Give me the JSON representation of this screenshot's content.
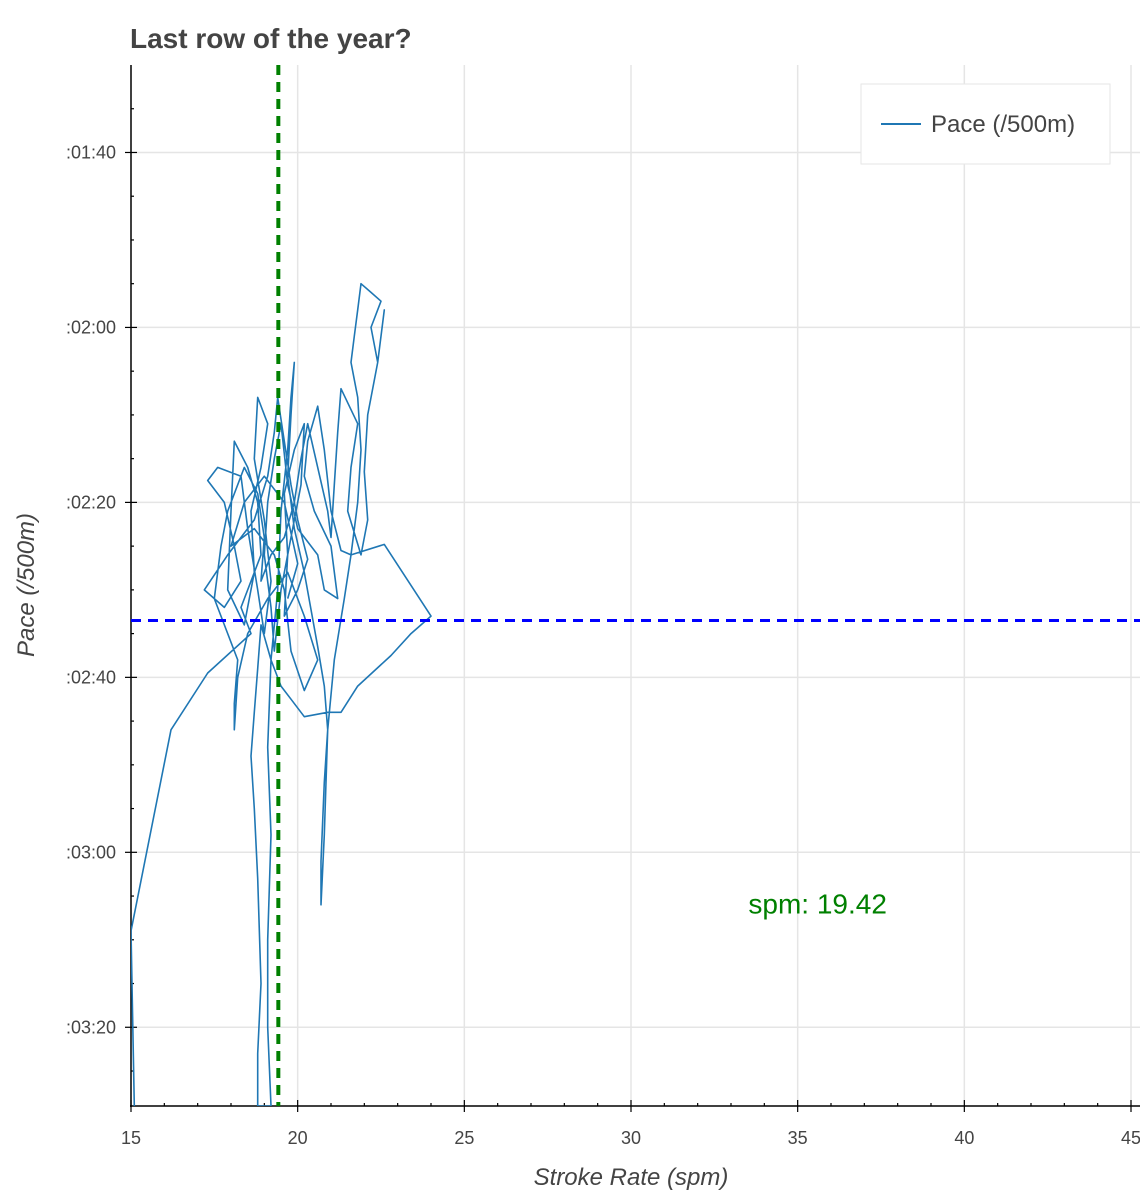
{
  "chart_data": {
    "type": "line",
    "title": "Last row of the year?",
    "xlabel": "Stroke Rate (spm)",
    "ylabel": "Pace (/500m)",
    "xlim": [
      15,
      45
    ],
    "ylim_seconds": [
      90,
      209
    ],
    "y_inverted": true,
    "grid": true,
    "legend_position": "top-right",
    "x_ticks": [
      15,
      20,
      25,
      30,
      35,
      40,
      45
    ],
    "x_tick_labels": [
      "15",
      "20",
      "25",
      "30",
      "35",
      "40",
      "45"
    ],
    "y_ticks_seconds": [
      100,
      120,
      140,
      160,
      180,
      200
    ],
    "y_tick_labels": [
      ":01:40",
      ":02:00",
      ":02:20",
      ":02:40",
      ":03:00",
      ":03:20"
    ],
    "series": [
      {
        "name": "Pace (/500m)",
        "color": "#1f77b4",
        "points": [
          [
            15.1,
            209.0
          ],
          [
            15.0,
            189.0
          ],
          [
            16.2,
            166.0
          ],
          [
            17.3,
            159.5
          ],
          [
            18.6,
            155.0
          ],
          [
            18.3,
            152.0
          ],
          [
            18.9,
            146.0
          ],
          [
            18.8,
            140.0
          ],
          [
            18.5,
            136.0
          ],
          [
            18.1,
            133.0
          ],
          [
            18.0,
            141.0
          ],
          [
            17.9,
            150.0
          ],
          [
            18.4,
            154.0
          ],
          [
            18.7,
            148.0
          ],
          [
            18.6,
            141.0
          ],
          [
            18.9,
            136.0
          ],
          [
            19.1,
            131.0
          ],
          [
            18.8,
            128.0
          ],
          [
            18.7,
            135.0
          ],
          [
            19.0,
            142.0
          ],
          [
            19.2,
            149.0
          ],
          [
            19.0,
            155.0
          ],
          [
            18.8,
            150.0
          ],
          [
            18.5,
            143.0
          ],
          [
            18.3,
            137.0
          ],
          [
            17.6,
            136.0
          ],
          [
            17.3,
            137.5
          ],
          [
            17.8,
            140.0
          ],
          [
            18.1,
            145.0
          ],
          [
            18.3,
            149.0
          ],
          [
            17.8,
            152.0
          ],
          [
            17.2,
            150.0
          ],
          [
            17.9,
            146.0
          ],
          [
            18.7,
            142.0
          ],
          [
            19.1,
            137.0
          ],
          [
            19.3,
            132.0
          ],
          [
            19.4,
            128.0
          ],
          [
            19.6,
            133.0
          ],
          [
            19.8,
            138.0
          ],
          [
            20.0,
            142.0
          ],
          [
            20.3,
            146.5
          ],
          [
            20.0,
            150.0
          ],
          [
            19.6,
            153.0
          ],
          [
            19.7,
            146.0
          ],
          [
            19.6,
            139.0
          ],
          [
            19.9,
            134.0
          ],
          [
            20.2,
            131.0
          ],
          [
            20.1,
            138.0
          ],
          [
            19.8,
            144.0
          ],
          [
            19.5,
            150.0
          ],
          [
            19.3,
            157.0
          ],
          [
            19.2,
            152.0
          ],
          [
            19.0,
            146.0
          ],
          [
            19.1,
            140.0
          ],
          [
            19.3,
            135.0
          ],
          [
            19.5,
            131.0
          ],
          [
            19.7,
            138.0
          ],
          [
            20.0,
            143.0
          ],
          [
            20.6,
            146.0
          ],
          [
            20.8,
            150.0
          ],
          [
            21.2,
            151.0
          ],
          [
            21.0,
            145.0
          ],
          [
            20.5,
            141.0
          ],
          [
            20.2,
            137.0
          ],
          [
            20.3,
            133.0
          ],
          [
            20.6,
            129.0
          ],
          [
            20.8,
            134.0
          ],
          [
            21.0,
            141.0
          ],
          [
            21.3,
            145.5
          ],
          [
            21.6,
            146.0
          ],
          [
            22.6,
            144.8
          ],
          [
            24.0,
            153.0
          ],
          [
            23.4,
            155.0
          ],
          [
            22.8,
            157.5
          ],
          [
            21.8,
            161.0
          ],
          [
            21.3,
            164.0
          ],
          [
            20.9,
            164.0
          ],
          [
            20.2,
            164.5
          ],
          [
            19.8,
            162.5
          ],
          [
            19.5,
            161.0
          ],
          [
            19.2,
            158.0
          ],
          [
            18.9,
            154.0
          ],
          [
            18.8,
            159.0
          ],
          [
            18.7,
            164.0
          ],
          [
            18.6,
            169.0
          ],
          [
            18.7,
            175.0
          ],
          [
            18.8,
            183.0
          ],
          [
            18.9,
            195.0
          ],
          [
            18.8,
            203.0
          ],
          [
            18.8,
            209.0
          ],
          [
            19.2,
            209.0
          ],
          [
            19.1,
            200.0
          ],
          [
            19.1,
            190.0
          ],
          [
            19.2,
            178.0
          ],
          [
            19.1,
            168.0
          ],
          [
            19.2,
            158.0
          ],
          [
            19.4,
            150.0
          ],
          [
            19.5,
            141.0
          ],
          [
            19.7,
            134.0
          ],
          [
            19.8,
            128.0
          ],
          [
            19.9,
            124.0
          ],
          [
            19.8,
            130.0
          ],
          [
            19.7,
            137.0
          ],
          [
            19.9,
            143.0
          ],
          [
            20.2,
            148.0
          ],
          [
            20.6,
            156.5
          ],
          [
            20.8,
            161.0
          ],
          [
            20.9,
            166.0
          ],
          [
            20.8,
            172.0
          ],
          [
            20.7,
            181.0
          ],
          [
            20.7,
            186.0
          ],
          [
            20.8,
            178.0
          ],
          [
            20.9,
            166.0
          ],
          [
            21.1,
            158.0
          ],
          [
            21.4,
            151.0
          ],
          [
            21.6,
            146.0
          ],
          [
            21.8,
            140.0
          ],
          [
            21.9,
            134.0
          ],
          [
            21.8,
            128.0
          ],
          [
            21.6,
            124.0
          ],
          [
            21.7,
            121.0
          ],
          [
            21.8,
            118.0
          ],
          [
            21.9,
            115.0
          ],
          [
            22.2,
            116.0
          ],
          [
            22.5,
            117.0
          ],
          [
            22.2,
            120.0
          ],
          [
            22.4,
            124.0
          ],
          [
            22.6,
            118.0
          ],
          [
            22.4,
            124.0
          ],
          [
            22.1,
            130.0
          ],
          [
            22.0,
            136.5
          ],
          [
            22.1,
            142.0
          ],
          [
            21.9,
            146.0
          ],
          [
            21.5,
            141.0
          ],
          [
            21.6,
            136.0
          ],
          [
            21.8,
            131.0
          ],
          [
            21.3,
            127.0
          ],
          [
            21.2,
            132.0
          ],
          [
            21.1,
            138.0
          ],
          [
            21.0,
            144.0
          ],
          [
            20.9,
            141.0
          ],
          [
            20.6,
            136.0
          ],
          [
            20.3,
            131.0
          ],
          [
            20.1,
            135.0
          ],
          [
            19.9,
            140.0
          ],
          [
            19.6,
            144.0
          ],
          [
            19.2,
            146.0
          ],
          [
            18.9,
            149.0
          ],
          [
            19.0,
            144.0
          ],
          [
            18.8,
            139.0
          ],
          [
            18.4,
            136.0
          ],
          [
            17.9,
            141.0
          ],
          [
            17.7,
            145.0
          ],
          [
            17.5,
            151.0
          ],
          [
            17.9,
            155.0
          ],
          [
            18.2,
            158.0
          ],
          [
            18.1,
            163.0
          ],
          [
            18.1,
            166.0
          ],
          [
            18.2,
            160.0
          ],
          [
            18.5,
            155.0
          ],
          [
            19.1,
            151.0
          ],
          [
            19.7,
            148.0
          ],
          [
            20.2,
            153.0
          ],
          [
            20.6,
            158.0
          ],
          [
            20.2,
            161.5
          ],
          [
            19.8,
            157.0
          ],
          [
            19.6,
            150.0
          ],
          [
            19.3,
            146.0
          ],
          [
            18.7,
            143.0
          ],
          [
            18.0,
            145.0
          ],
          [
            18.4,
            140.0
          ],
          [
            19.0,
            137.0
          ],
          [
            19.6,
            140.0
          ],
          [
            20.0,
            147.0
          ],
          [
            19.7,
            151.0
          ]
        ]
      }
    ],
    "reference_lines": [
      {
        "orientation": "vertical",
        "value": 19.42,
        "color": "#008000",
        "style": "dashed"
      },
      {
        "orientation": "horizontal",
        "value_seconds": 153.5,
        "color": "#0000ff",
        "style": "dashed"
      }
    ],
    "annotation": {
      "text": "spm: 19.42",
      "color": "#008000",
      "x": 35.6,
      "y_seconds": 187.0
    }
  }
}
